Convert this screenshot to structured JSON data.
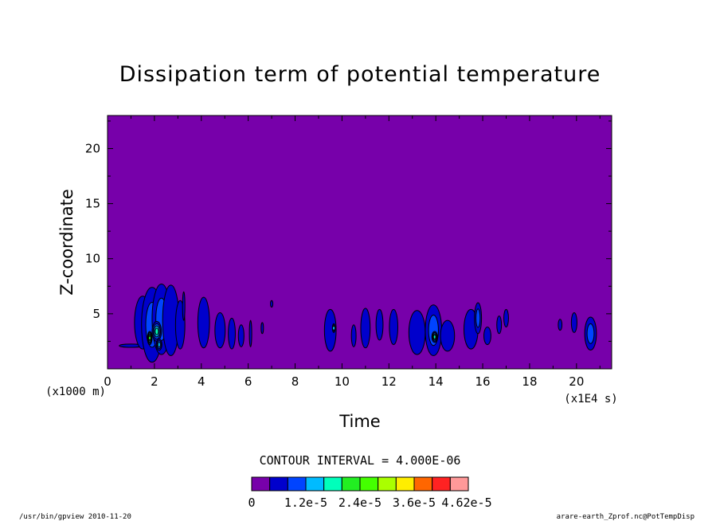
{
  "chart_data": {
    "type": "heatmap",
    "title": "Dissipation term of potential temperature",
    "xlabel": "Time",
    "ylabel": "Z-coordinate",
    "x_unit_note": "(x1E4 s)",
    "y_unit_note": "(x1000 m)",
    "xlim": [
      0,
      21.5
    ],
    "ylim": [
      0,
      23
    ],
    "x_ticks": [
      0,
      2,
      4,
      6,
      8,
      10,
      12,
      14,
      16,
      18,
      20
    ],
    "y_ticks": [
      5,
      10,
      15,
      20
    ],
    "x_tick_labels": [
      "0",
      "2",
      "4",
      "6",
      "8",
      "10",
      "12",
      "14",
      "16",
      "18",
      "20"
    ],
    "y_tick_labels": [
      "5",
      "10",
      "15",
      "20"
    ],
    "background_color": "#7700aa",
    "contour_interval_text": "CONTOUR INTERVAL = 4.000E-06",
    "colorbar": {
      "colors": [
        "#7700aa",
        "#0000cc",
        "#0044ff",
        "#00bbff",
        "#00ffbb",
        "#22ee22",
        "#44ff00",
        "#aaff00",
        "#ffee00",
        "#ff6600",
        "#ff2222",
        "#ff9999"
      ],
      "labels": [
        "0",
        "1.2e-5",
        "2.4e-5",
        "3.6e-5",
        "4.62e-5"
      ]
    },
    "cells": [
      {
        "x": 1.0,
        "y": 2.1,
        "rx": 0.5,
        "ry": 0.15,
        "level": 1
      },
      {
        "x": 1.5,
        "y": 4.2,
        "rx": 0.35,
        "ry": 2.4,
        "level": 1
      },
      {
        "x": 1.9,
        "y": 4.0,
        "rx": 0.45,
        "ry": 3.4,
        "level": 2
      },
      {
        "x": 2.3,
        "y": 4.5,
        "rx": 0.4,
        "ry": 3.2,
        "level": 2
      },
      {
        "x": 2.7,
        "y": 4.4,
        "rx": 0.35,
        "ry": 3.2,
        "level": 1
      },
      {
        "x": 3.1,
        "y": 4.0,
        "rx": 0.2,
        "ry": 2.2,
        "level": 1
      },
      {
        "x": 2.1,
        "y": 3.4,
        "rx": 0.2,
        "ry": 0.9,
        "level": 4
      },
      {
        "x": 1.8,
        "y": 2.8,
        "rx": 0.1,
        "ry": 0.6,
        "level": 5
      },
      {
        "x": 2.2,
        "y": 2.2,
        "rx": 0.12,
        "ry": 0.5,
        "level": 3
      },
      {
        "x": 3.25,
        "y": 5.7,
        "rx": 0.05,
        "ry": 1.3,
        "level": 1
      },
      {
        "x": 4.1,
        "y": 4.2,
        "rx": 0.25,
        "ry": 2.3,
        "level": 1
      },
      {
        "x": 4.8,
        "y": 3.5,
        "rx": 0.22,
        "ry": 1.6,
        "level": 1
      },
      {
        "x": 5.3,
        "y": 3.2,
        "rx": 0.15,
        "ry": 1.4,
        "level": 1
      },
      {
        "x": 5.7,
        "y": 3.0,
        "rx": 0.12,
        "ry": 1.0,
        "level": 1
      },
      {
        "x": 6.1,
        "y": 3.2,
        "rx": 0.05,
        "ry": 1.2,
        "level": 1
      },
      {
        "x": 6.6,
        "y": 3.7,
        "rx": 0.04,
        "ry": 0.5,
        "level": 1
      },
      {
        "x": 7.0,
        "y": 5.9,
        "rx": 0.04,
        "ry": 0.3,
        "level": 1
      },
      {
        "x": 9.5,
        "y": 3.5,
        "rx": 0.25,
        "ry": 1.9,
        "level": 1
      },
      {
        "x": 9.65,
        "y": 3.7,
        "rx": 0.06,
        "ry": 0.4,
        "level": 3
      },
      {
        "x": 10.5,
        "y": 3.0,
        "rx": 0.1,
        "ry": 1.0,
        "level": 1
      },
      {
        "x": 11.0,
        "y": 3.7,
        "rx": 0.2,
        "ry": 1.8,
        "level": 1
      },
      {
        "x": 11.6,
        "y": 4.0,
        "rx": 0.15,
        "ry": 1.4,
        "level": 1
      },
      {
        "x": 12.2,
        "y": 3.8,
        "rx": 0.18,
        "ry": 1.6,
        "level": 1
      },
      {
        "x": 13.2,
        "y": 3.3,
        "rx": 0.35,
        "ry": 2.0,
        "level": 1
      },
      {
        "x": 13.9,
        "y": 3.5,
        "rx": 0.35,
        "ry": 2.3,
        "level": 2
      },
      {
        "x": 14.5,
        "y": 3.0,
        "rx": 0.3,
        "ry": 1.4,
        "level": 1
      },
      {
        "x": 13.95,
        "y": 2.9,
        "rx": 0.12,
        "ry": 0.5,
        "level": 4
      },
      {
        "x": 15.5,
        "y": 3.6,
        "rx": 0.3,
        "ry": 1.8,
        "level": 1
      },
      {
        "x": 15.8,
        "y": 4.6,
        "rx": 0.15,
        "ry": 1.4,
        "level": 2
      },
      {
        "x": 16.2,
        "y": 3.0,
        "rx": 0.15,
        "ry": 0.8,
        "level": 1
      },
      {
        "x": 16.7,
        "y": 4.0,
        "rx": 0.1,
        "ry": 0.8,
        "level": 1
      },
      {
        "x": 17.0,
        "y": 4.6,
        "rx": 0.1,
        "ry": 0.8,
        "level": 1
      },
      {
        "x": 19.3,
        "y": 4.0,
        "rx": 0.08,
        "ry": 0.5,
        "level": 1
      },
      {
        "x": 19.9,
        "y": 4.2,
        "rx": 0.12,
        "ry": 0.9,
        "level": 1
      },
      {
        "x": 20.6,
        "y": 3.2,
        "rx": 0.25,
        "ry": 1.5,
        "level": 2
      }
    ]
  },
  "footer": {
    "left": "/usr/bin/gpview  2010-11-20",
    "right": "arare-earth_Zprof.nc@PotTempDisp"
  }
}
